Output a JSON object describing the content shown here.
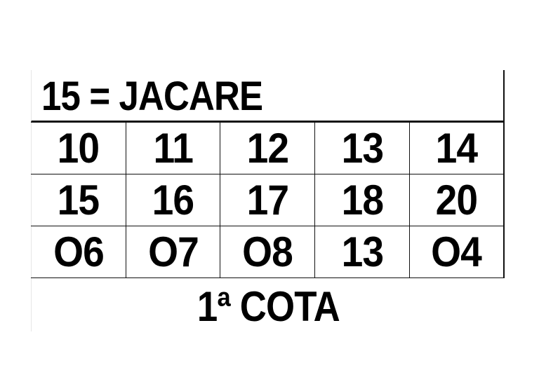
{
  "title": "15 = JACARE",
  "rows": [
    [
      "10",
      "11",
      "12",
      "13",
      "14"
    ],
    [
      "15",
      "16",
      "17",
      "18",
      "20"
    ],
    [
      "O6",
      "O7",
      "O8",
      "13",
      "O4"
    ]
  ],
  "footer": "1ª COTA"
}
